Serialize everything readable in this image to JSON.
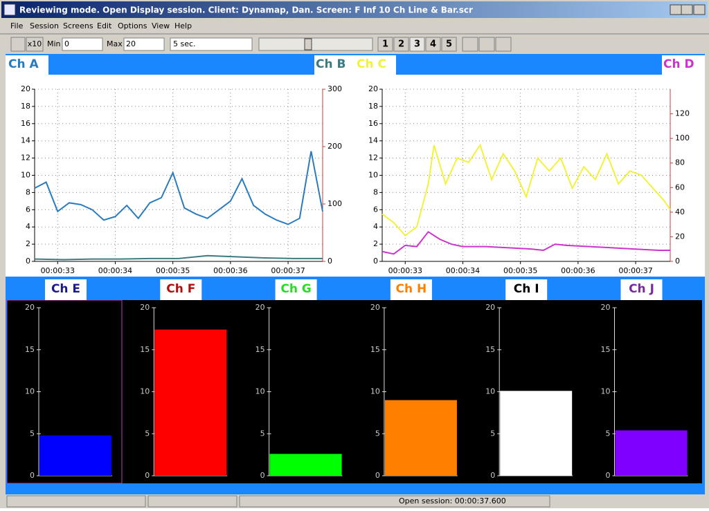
{
  "window": {
    "title": "Reviewing mode. Open Display session. Client: Dynamap, Dan. Screen: F Inf 10 Ch Line & Bar.scr",
    "menu": [
      "File",
      "Session",
      "Screens",
      "Edit",
      "Options",
      "View",
      "Help"
    ],
    "toolbar": {
      "zoom": "x10",
      "min_label": "Min",
      "min": 0,
      "max_label": "Max",
      "max": 20,
      "interval": "5 sec.",
      "screens": [
        "1",
        "2",
        "3",
        "4",
        "5"
      ]
    },
    "status": "Open session: 00:00:37.600"
  },
  "chart_data": [
    {
      "type": "line",
      "grid": true,
      "xlim": [
        32.6,
        37.6
      ],
      "xticks": [
        {
          "value": 33,
          "label": "00:00:33"
        },
        {
          "value": 34,
          "label": "00:00:34"
        },
        {
          "value": 35,
          "label": "00:00:35"
        },
        {
          "value": 36,
          "label": "00:00:36"
        },
        {
          "value": 37,
          "label": "00:00:37"
        }
      ],
      "ylim": [
        0,
        20
      ],
      "yticks": [
        0,
        2,
        4,
        6,
        8,
        10,
        12,
        14,
        16,
        18,
        20
      ],
      "y2lim": [
        0,
        300
      ],
      "y2ticks": [
        0,
        100,
        200,
        300
      ],
      "series": [
        {
          "name": "Ch A",
          "color": "#2a7bbd",
          "x": [
            32.6,
            32.8,
            33.0,
            33.2,
            33.4,
            33.6,
            33.8,
            34.0,
            34.2,
            34.4,
            34.6,
            34.8,
            35.0,
            35.2,
            35.4,
            35.6,
            35.8,
            36.0,
            36.2,
            36.4,
            36.6,
            36.8,
            37.0,
            37.2,
            37.4,
            37.6
          ],
          "values": [
            8.5,
            9.2,
            5.8,
            6.8,
            6.6,
            6.0,
            4.8,
            5.2,
            6.5,
            5.0,
            6.8,
            7.4,
            10.3,
            6.2,
            5.5,
            5.0,
            6.0,
            7.0,
            9.6,
            6.5,
            5.5,
            4.8,
            4.3,
            5.0,
            12.8,
            5.8
          ]
        },
        {
          "name": "Ch B",
          "color": "#3a7a80",
          "axis": "y2",
          "x": [
            32.6,
            33.1,
            33.6,
            34.1,
            34.6,
            35.1,
            35.6,
            36.1,
            36.6,
            37.1,
            37.6
          ],
          "values": [
            4,
            3,
            4,
            4,
            5,
            5,
            10,
            8,
            6,
            5,
            5
          ]
        }
      ]
    },
    {
      "type": "line",
      "grid": true,
      "xlim": [
        32.6,
        37.6
      ],
      "xticks": [
        {
          "value": 33,
          "label": "00:00:33"
        },
        {
          "value": 34,
          "label": "00:00:34"
        },
        {
          "value": 35,
          "label": "00:00:35"
        },
        {
          "value": 36,
          "label": "00:00:36"
        },
        {
          "value": 37,
          "label": "00:00:37"
        }
      ],
      "ylim": [
        0,
        20
      ],
      "yticks": [
        0,
        2,
        4,
        6,
        8,
        10,
        12,
        14,
        16,
        18,
        20
      ],
      "y2lim": [
        0,
        140
      ],
      "y2ticks": [
        0,
        20,
        40,
        60,
        80,
        100,
        120
      ],
      "series": [
        {
          "name": "Ch C",
          "color": "#f2f23a",
          "x": [
            32.6,
            32.8,
            33.0,
            33.2,
            33.4,
            33.5,
            33.7,
            33.9,
            34.1,
            34.3,
            34.5,
            34.7,
            34.9,
            35.1,
            35.3,
            35.5,
            35.7,
            35.9,
            36.1,
            36.3,
            36.5,
            36.7,
            36.9,
            37.1,
            37.3,
            37.5,
            37.6
          ],
          "values": [
            5.5,
            4.5,
            3.0,
            4.0,
            9,
            13.5,
            9,
            12,
            11.5,
            13.5,
            9.5,
            12.5,
            10.5,
            7.5,
            12,
            10.5,
            12,
            8.5,
            11,
            9.5,
            12.5,
            9.0,
            10.5,
            10,
            8.5,
            7,
            6
          ]
        },
        {
          "name": "Ch D",
          "color": "#cc33cc",
          "axis": "y2",
          "x": [
            32.6,
            32.8,
            33.0,
            33.2,
            33.4,
            33.6,
            33.8,
            34.0,
            34.4,
            34.8,
            35.2,
            35.4,
            35.6,
            35.8,
            36.2,
            36.6,
            37.0,
            37.4,
            37.6
          ],
          "values": [
            8,
            6,
            13,
            12,
            24,
            18,
            14,
            12,
            12,
            11,
            10,
            9,
            14,
            13,
            12,
            11,
            10,
            9,
            9
          ]
        }
      ]
    },
    {
      "type": "bar",
      "title": "Ch E",
      "title_color": "#1a1a8c",
      "color": "#0000ff",
      "values": [
        4.8
      ],
      "ylim": [
        0,
        20
      ],
      "yticks": [
        0,
        5,
        10,
        15,
        20
      ]
    },
    {
      "type": "bar",
      "title": "Ch F",
      "title_color": "#b01010",
      "color": "#ff0000",
      "values": [
        17.4
      ],
      "ylim": [
        0,
        20
      ],
      "yticks": [
        0,
        5,
        10,
        15,
        20
      ]
    },
    {
      "type": "bar",
      "title": "Ch G",
      "title_color": "#20e020",
      "color": "#00ff00",
      "values": [
        2.6
      ],
      "ylim": [
        0,
        20
      ],
      "yticks": [
        0,
        5,
        10,
        15,
        20
      ]
    },
    {
      "type": "bar",
      "title": "Ch H",
      "title_color": "#ff8000",
      "color": "#ff8000",
      "values": [
        9
      ],
      "ylim": [
        0,
        20
      ],
      "yticks": [
        0,
        5,
        10,
        15,
        20
      ]
    },
    {
      "type": "bar",
      "title": "Ch I",
      "title_color": "#000000",
      "color": "#ffffff",
      "values": [
        10.1
      ],
      "ylim": [
        0,
        20
      ],
      "yticks": [
        0,
        5,
        10,
        15,
        20
      ]
    },
    {
      "type": "bar",
      "title": "Ch J",
      "title_color": "#7a2aa0",
      "color": "#8000ff",
      "values": [
        5.4
      ],
      "ylim": [
        0,
        20
      ],
      "yticks": [
        0,
        5,
        10,
        15,
        20
      ]
    }
  ]
}
